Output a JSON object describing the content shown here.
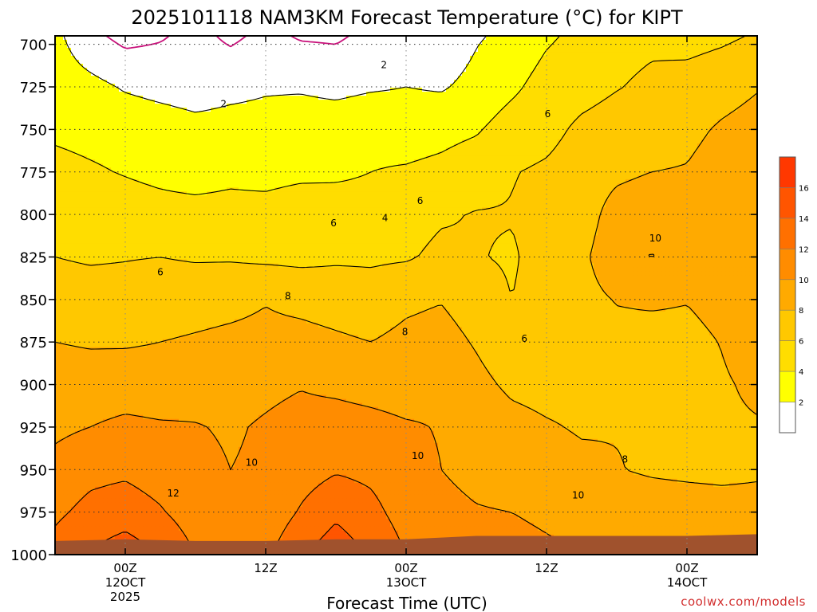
{
  "chart_data": {
    "type": "heatmap",
    "title": "2025101118 NAM3KM Forecast Temperature (°C) for KIPT",
    "xlabel": "Forecast Time (UTC)",
    "ylabel": "",
    "x_ticks": [
      {
        "hours": 6,
        "lines": [
          "00Z",
          "12OCT",
          "2025"
        ]
      },
      {
        "hours": 18,
        "lines": [
          "12Z"
        ]
      },
      {
        "hours": 30,
        "lines": [
          "00Z",
          "13OCT"
        ]
      },
      {
        "hours": 42,
        "lines": [
          "12Z"
        ]
      },
      {
        "hours": 54,
        "lines": [
          "00Z",
          "14OCT"
        ]
      }
    ],
    "xlim_hours": [
      0,
      60
    ],
    "y_ticks": [
      700,
      725,
      750,
      775,
      800,
      825,
      850,
      875,
      900,
      925,
      950,
      975,
      1000
    ],
    "ylim": [
      1000,
      695
    ],
    "grid": true,
    "colorbar": {
      "levels": [
        0,
        2,
        4,
        6,
        8,
        10,
        12,
        14,
        16,
        18
      ],
      "tick_labels": [
        "2",
        "4",
        "6",
        "8",
        "10",
        "12",
        "14",
        "16"
      ],
      "colors": [
        "#ffffff",
        "#ffff00",
        "#ffdd00",
        "#ffc800",
        "#ffaa00",
        "#ff8c00",
        "#ff7000",
        "#ff5500",
        "#ff3800"
      ]
    },
    "contour_labels": [
      {
        "text": "2",
        "t": 14.4,
        "p": 735
      },
      {
        "text": "2",
        "t": 28.1,
        "p": 712
      },
      {
        "text": "4",
        "t": 28.2,
        "p": 802
      },
      {
        "text": "6",
        "t": 9.0,
        "p": 834
      },
      {
        "text": "6",
        "t": 23.8,
        "p": 805
      },
      {
        "text": "6",
        "t": 31.2,
        "p": 792
      },
      {
        "text": "6",
        "t": 42.1,
        "p": 741
      },
      {
        "text": "6",
        "t": 40.1,
        "p": 873
      },
      {
        "text": "8",
        "t": 19.9,
        "p": 848
      },
      {
        "text": "8",
        "t": 29.9,
        "p": 869
      },
      {
        "text": "8",
        "t": 48.7,
        "p": 944
      },
      {
        "text": "10",
        "t": 16.8,
        "p": 946
      },
      {
        "text": "10",
        "t": 31.0,
        "p": 942
      },
      {
        "text": "10",
        "t": 51.3,
        "p": 814
      },
      {
        "text": "10",
        "t": 44.7,
        "p": 965
      },
      {
        "text": "12",
        "t": 10.1,
        "p": 964
      }
    ],
    "temperature_grid": {
      "hours": [
        0,
        3,
        6,
        9,
        12,
        15,
        18,
        21,
        24,
        27,
        30,
        33,
        36,
        39,
        42,
        45,
        48,
        51,
        54,
        57,
        60
      ],
      "pressures": [
        695,
        725,
        750,
        775,
        800,
        825,
        850,
        875,
        900,
        925,
        950,
        975,
        1000
      ],
      "values": [
        [
          2.5,
          0.5,
          -0.6,
          -0.2,
          0.6,
          -0.4,
          0.5,
          -0.2,
          -0.3,
          0.5,
          0.6,
          0.5,
          1.8,
          2.5,
          3.7,
          4.5,
          5.3,
          5.6,
          5.2,
          5.6,
          6.2
        ],
        [
          3.1,
          2.6,
          1.8,
          1.4,
          1.1,
          1.5,
          1.8,
          1.8,
          1.5,
          1.8,
          2.0,
          1.8,
          2.6,
          3.6,
          4.8,
          5.3,
          5.9,
          6.4,
          6.9,
          7.4,
          7.9
        ],
        [
          3.7,
          3.5,
          3.3,
          3.0,
          2.6,
          2.7,
          2.7,
          3.0,
          3.1,
          3.4,
          3.1,
          3.4,
          3.8,
          4.9,
          5.4,
          6.4,
          6.9,
          7.3,
          7.6,
          8.2,
          8.6
        ],
        [
          4.5,
          4.2,
          3.9,
          3.6,
          3.3,
          3.6,
          3.4,
          3.6,
          3.7,
          4.0,
          4.2,
          4.5,
          5.1,
          5.9,
          6.3,
          7.0,
          7.6,
          8.0,
          8.1,
          8.7,
          9.0
        ],
        [
          5.2,
          5.0,
          4.8,
          4.6,
          4.6,
          4.6,
          4.7,
          5.1,
          4.9,
          4.7,
          5.3,
          5.8,
          6.1,
          6.1,
          6.5,
          7.1,
          8.8,
          9.3,
          8.6,
          8.8,
          9.2
        ],
        [
          6.0,
          5.8,
          5.9,
          6.0,
          5.8,
          5.8,
          5.6,
          5.5,
          5.7,
          5.7,
          5.8,
          6.4,
          6.1,
          5.8,
          6.7,
          7.6,
          9.3,
          10.1,
          9.0,
          9.1,
          9.3
        ],
        [
          6.9,
          6.8,
          6.8,
          7.1,
          7.3,
          7.5,
          7.9,
          7.5,
          7.2,
          6.9,
          7.6,
          7.9,
          7.0,
          6.0,
          6.6,
          7.4,
          8.1,
          8.3,
          8.1,
          8.8,
          9.6
        ],
        [
          8.0,
          7.8,
          7.8,
          8.0,
          8.2,
          8.4,
          8.5,
          8.6,
          8.3,
          8.0,
          8.5,
          8.8,
          7.8,
          6.6,
          6.7,
          7.3,
          7.4,
          7.2,
          7.3,
          8.1,
          9.5
        ],
        [
          9.0,
          9.0,
          9.1,
          9.0,
          9.2,
          9.3,
          9.6,
          9.9,
          9.6,
          9.3,
          9.1,
          9.6,
          8.6,
          7.6,
          7.3,
          7.2,
          7.6,
          7.8,
          7.7,
          7.7,
          8.5
        ],
        [
          9.6,
          10.0,
          10.4,
          10.2,
          10.1,
          9.8,
          10.2,
          10.6,
          10.8,
          10.6,
          10.2,
          9.9,
          9.5,
          8.7,
          8.2,
          7.8,
          7.9,
          7.8,
          7.8,
          7.6,
          7.8
        ],
        [
          10.6,
          11.4,
          11.6,
          11.0,
          10.5,
          10.0,
          10.3,
          11.1,
          11.8,
          11.5,
          10.6,
          10.0,
          9.6,
          9.3,
          8.9,
          8.5,
          8.1,
          7.7,
          7.5,
          7.4,
          7.6
        ],
        [
          11.6,
          12.6,
          13.1,
          12.2,
          10.9,
          10.1,
          10.6,
          12.2,
          13.6,
          12.6,
          11.1,
          10.4,
          10.1,
          10.0,
          9.8,
          9.6,
          9.4,
          9.3,
          9.2,
          9.0,
          9.0
        ],
        [
          12.8,
          14.2,
          15.1,
          14.0,
          12.0,
          10.8,
          11.6,
          13.8,
          15.2,
          13.8,
          12.0,
          11.0,
          10.6,
          10.4,
          10.2,
          10.0,
          9.8,
          9.7,
          9.6,
          9.5,
          9.4
        ]
      ]
    },
    "surface_pressure": {
      "hours": [
        0,
        6,
        12,
        18,
        24,
        30,
        36,
        42,
        48,
        54,
        60
      ],
      "pressures": [
        992,
        991,
        992,
        992,
        991,
        991,
        989,
        989,
        989,
        989,
        988
      ]
    },
    "surface_color": "#a0522d",
    "contour_color": "#000000",
    "zero_line_color": "#c8107a"
  },
  "credit": "coolwx.com/models"
}
